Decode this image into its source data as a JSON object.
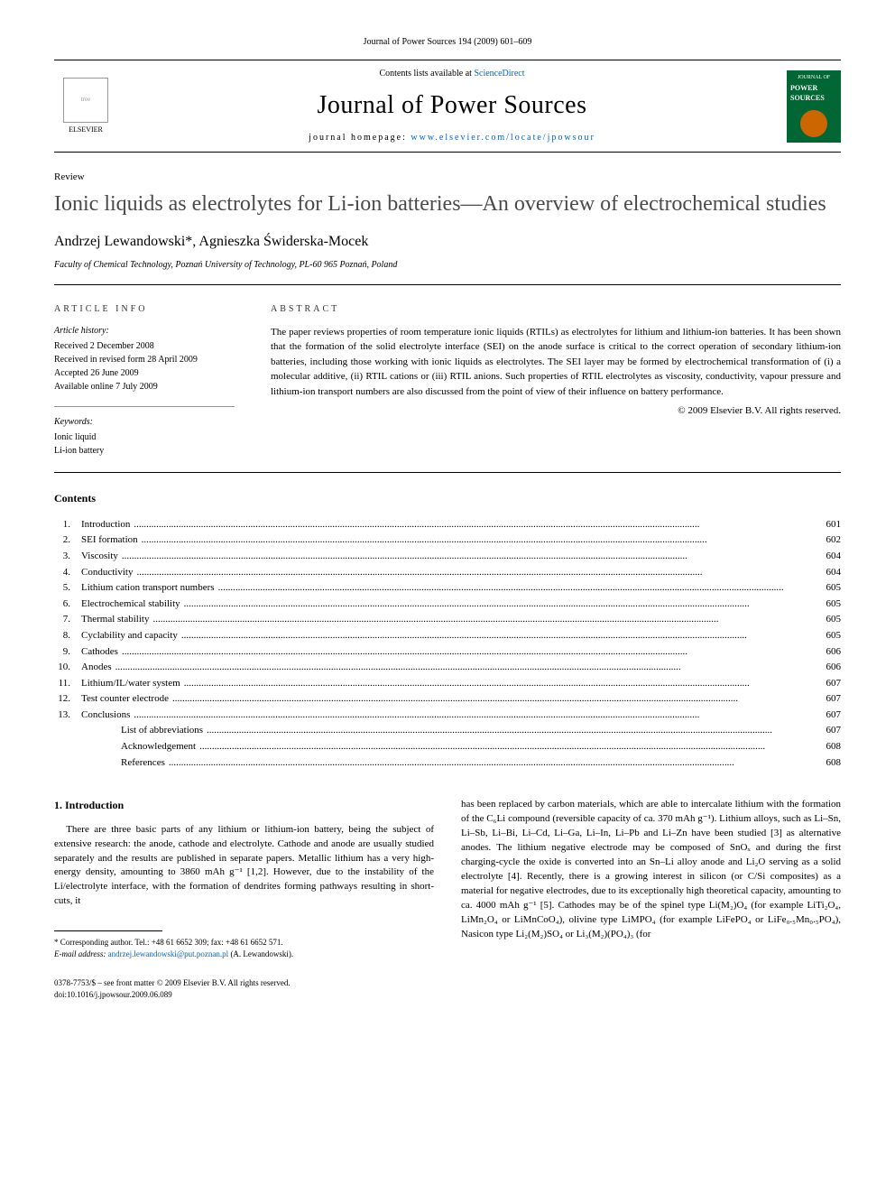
{
  "page_header": "Journal of Power Sources 194 (2009) 601–609",
  "masthead": {
    "publisher": "ELSEVIER",
    "contents_prefix": "Contents lists available at ",
    "contents_link": "ScienceDirect",
    "journal_name": "Journal of Power Sources",
    "homepage_prefix": "journal homepage: ",
    "homepage_url": "www.elsevier.com/locate/jpowsour",
    "cover_label_top": "JOURNAL OF",
    "cover_label": "POWER SOURCES"
  },
  "article": {
    "type": "Review",
    "title": "Ionic liquids as electrolytes for Li-ion batteries—An overview of electrochemical studies",
    "authors": "Andrzej Lewandowski*, Agnieszka Świderska-Mocek",
    "affiliation": "Faculty of Chemical Technology, Poznań University of Technology, PL-60 965 Poznań, Poland"
  },
  "info": {
    "head": "article info",
    "history_head": "Article history:",
    "history": [
      "Received 2 December 2008",
      "Received in revised form 28 April 2009",
      "Accepted 26 June 2009",
      "Available online 7 July 2009"
    ],
    "keywords_head": "Keywords:",
    "keywords": [
      "Ionic liquid",
      "Li-ion battery"
    ]
  },
  "abstract": {
    "head": "abstract",
    "text": "The paper reviews properties of room temperature ionic liquids (RTILs) as electrolytes for lithium and lithium-ion batteries. It has been shown that the formation of the solid electrolyte interface (SEI) on the anode surface is critical to the correct operation of secondary lithium-ion batteries, including those working with ionic liquids as electrolytes. The SEI layer may be formed by electrochemical transformation of (i) a molecular additive, (ii) RTIL cations or (iii) RTIL anions. Such properties of RTIL electrolytes as viscosity, conductivity, vapour pressure and lithium-ion transport numbers are also discussed from the point of view of their influence on battery performance.",
    "copyright": "© 2009 Elsevier B.V. All rights reserved."
  },
  "contents": {
    "heading": "Contents",
    "items": [
      {
        "num": "1.",
        "label": "Introduction",
        "page": "601"
      },
      {
        "num": "2.",
        "label": "SEI formation",
        "page": "602"
      },
      {
        "num": "3.",
        "label": "Viscosity",
        "page": "604"
      },
      {
        "num": "4.",
        "label": "Conductivity",
        "page": "604"
      },
      {
        "num": "5.",
        "label": "Lithium cation transport numbers",
        "page": "605"
      },
      {
        "num": "6.",
        "label": "Electrochemical stability",
        "page": "605"
      },
      {
        "num": "7.",
        "label": "Thermal stability",
        "page": "605"
      },
      {
        "num": "8.",
        "label": "Cyclability and capacity",
        "page": "605"
      },
      {
        "num": "9.",
        "label": "Cathodes",
        "page": "606"
      },
      {
        "num": "10.",
        "label": "Anodes",
        "page": "606"
      },
      {
        "num": "11.",
        "label": "Lithium/IL/water system",
        "page": "607"
      },
      {
        "num": "12.",
        "label": "Test counter electrode",
        "page": "607"
      },
      {
        "num": "13.",
        "label": "Conclusions",
        "page": "607"
      },
      {
        "num": "",
        "label": "List of abbreviations",
        "page": "607",
        "indent": true
      },
      {
        "num": "",
        "label": "Acknowledgement",
        "page": "608",
        "indent": true
      },
      {
        "num": "",
        "label": "References",
        "page": "608",
        "indent": true
      }
    ]
  },
  "body": {
    "heading": "1.  Introduction",
    "col1": "There are three basic parts of any lithium or lithium-ion battery, being the subject of extensive research: the anode, cathode and electrolyte. Cathode and anode are usually studied separately and the results are published in separate papers. Metallic lithium has a very high-energy density, amounting to 3860 mAh g⁻¹ [1,2]. However, due to the instability of the Li/electrolyte interface, with the formation of dendrites forming pathways resulting in short-cuts, it",
    "col2": "has been replaced by carbon materials, which are able to intercalate lithium with the formation of the C₆Li compound (reversible capacity of ca. 370 mAh g⁻¹). Lithium alloys, such as Li–Sn, Li–Sb, Li–Bi, Li–Cd, Li–Ga, Li–In, Li–Pb and Li–Zn have been studied [3] as alternative anodes. The lithium negative electrode may be composed of SnOₓ and during the first charging-cycle the oxide is converted into an Sn–Li alloy anode and Li₂O serving as a solid electrolyte [4]. Recently, there is a growing interest in silicon (or C/Si composites) as a material for negative electrodes, due to its exceptionally high theoretical capacity, amounting to ca. 4000 mAh g⁻¹ [5]. Cathodes may be of the spinel type Li(M₂)O₄ (for example LiTi₂O₄, LiMn₂O₄ or LiMnCoO₄), olivine type LiMPO₄ (for example LiFePO₄ or LiFe₀.₅Mn₀.₅PO₄), Nasicon type Li₂(M₂)SO₄ or Li₃(M₂)(PO₄)₃ (for"
  },
  "footnote": {
    "corr_label": "* Corresponding author. Tel.: +48 61 6652 309; fax: +48 61 6652 571.",
    "email_label": "E-mail address:",
    "email": "andrzej.lewandowski@put.poznan.pl",
    "email_suffix": "(A. Lewandowski)."
  },
  "footer": {
    "line1": "0378-7753/$ – see front matter © 2009 Elsevier B.V. All rights reserved.",
    "line2": "doi:10.1016/j.jpowsour.2009.06.089"
  },
  "colors": {
    "link": "#0066cc",
    "cover_bg": "#006633",
    "cover_accent": "#cc6600"
  }
}
